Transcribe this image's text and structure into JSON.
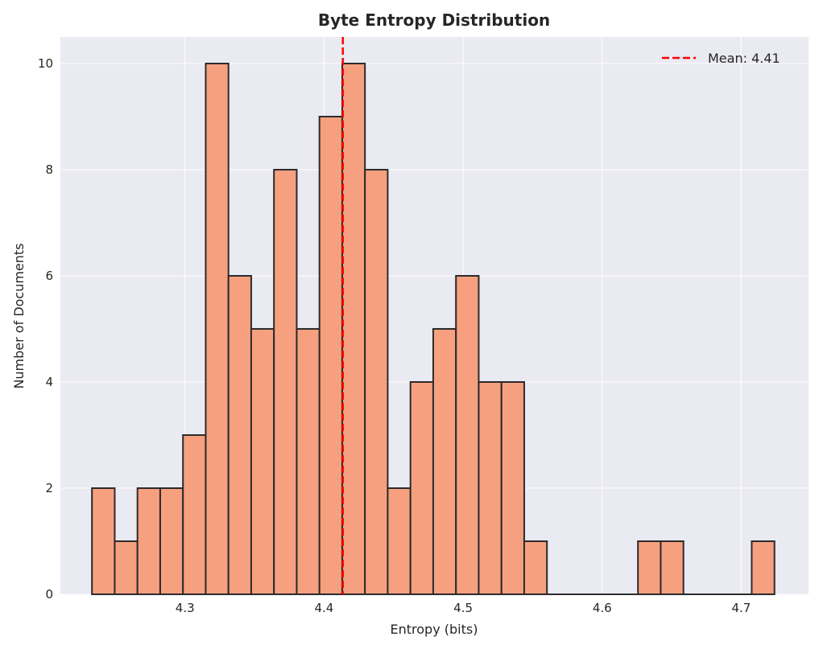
{
  "chart_data": {
    "type": "bar",
    "title": "Byte Entropy Distribution",
    "xlabel": "Entropy (bits)",
    "ylabel": "Number of Documents",
    "xlim": [
      4.2104,
      4.7484
    ],
    "ylim": [
      0,
      10.5
    ],
    "x_ticks": [
      4.3,
      4.4,
      4.5,
      4.6,
      4.7
    ],
    "x_tick_labels": [
      "4.3",
      "4.4",
      "4.5",
      "4.6",
      "4.7"
    ],
    "y_ticks": [
      0,
      2,
      4,
      6,
      8,
      10
    ],
    "y_tick_labels": [
      "0",
      "2",
      "4",
      "6",
      "8",
      "10"
    ],
    "bin_start": 4.2331,
    "bin_width": 0.01636,
    "values": [
      2,
      1,
      2,
      2,
      3,
      10,
      6,
      5,
      8,
      5,
      9,
      10,
      8,
      2,
      4,
      5,
      6,
      4,
      4,
      1,
      0,
      0,
      0,
      0,
      1,
      1,
      0,
      0,
      0,
      1
    ],
    "mean": 4.4135,
    "legend": {
      "label": "Mean: 4.41",
      "position": "top-right"
    },
    "grid": true,
    "colors": {
      "bar_fill": "#f7a07f",
      "bar_edge": "#2b2b2b",
      "mean_line": "#ff0000",
      "plot_background": "#eaeaf2",
      "grid": "#ffffff"
    }
  }
}
